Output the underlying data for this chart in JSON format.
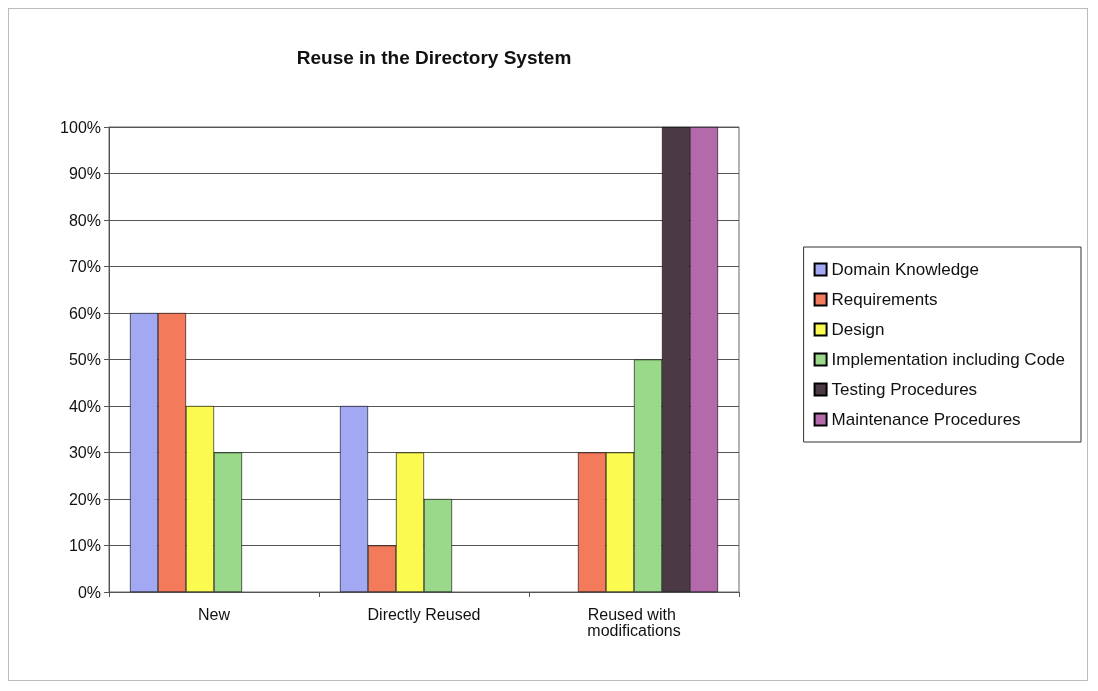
{
  "chart_data": {
    "type": "bar",
    "title": "Reuse in the Directory System",
    "categories": [
      "New",
      "Directly Reused",
      "Reused with modifications"
    ],
    "series": [
      {
        "name": "Domain Knowledge",
        "color": "#a3a8f2",
        "values": [
          60,
          40,
          null
        ]
      },
      {
        "name": "Requirements",
        "color": "#f47a5c",
        "values": [
          60,
          10,
          30
        ]
      },
      {
        "name": "Design",
        "color": "#fafa50",
        "values": [
          40,
          30,
          30
        ]
      },
      {
        "name": "Implementation including Code",
        "color": "#9ad88a",
        "values": [
          30,
          20,
          50
        ]
      },
      {
        "name": "Testing Procedures",
        "color": "#4b3a44",
        "values": [
          null,
          null,
          100
        ]
      },
      {
        "name": "Maintenance Procedures",
        "color": "#b46aaa",
        "values": [
          null,
          null,
          100
        ]
      }
    ],
    "ylim": [
      0,
      100
    ],
    "yticks": [
      {
        "value": 0,
        "label": "0%"
      },
      {
        "value": 10,
        "label": "10%"
      },
      {
        "value": 20,
        "label": "20%"
      },
      {
        "value": 30,
        "label": "30%"
      },
      {
        "value": 40,
        "label": "40%"
      },
      {
        "value": 50,
        "label": "50%"
      },
      {
        "value": 60,
        "label": "60%"
      },
      {
        "value": 70,
        "label": "70%"
      },
      {
        "value": 80,
        "label": "80%"
      },
      {
        "value": 90,
        "label": "90%"
      },
      {
        "value": 100,
        "label": "100%"
      }
    ],
    "grid": "y",
    "legend": "right"
  }
}
